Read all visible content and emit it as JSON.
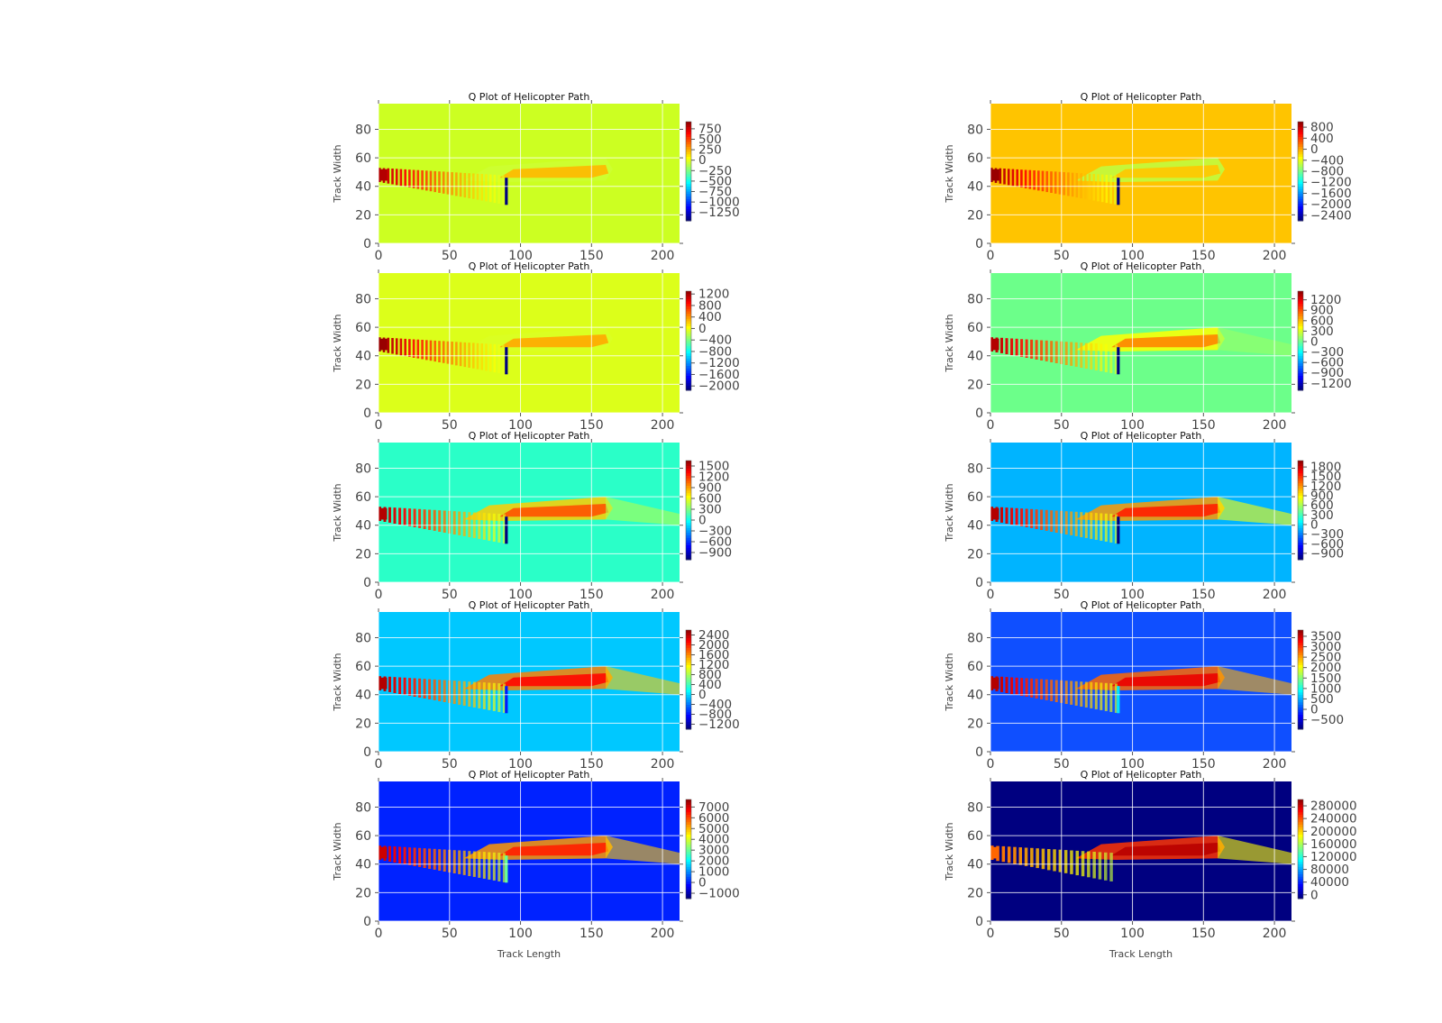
{
  "chart_data": [
    {
      "type": "heatmap",
      "title": "Q Plot of Helicopter Path",
      "xlabel": "",
      "ylabel": "Track Width",
      "xlim": [
        0,
        212
      ],
      "ylim": [
        0,
        98
      ],
      "x_ticks": [
        0,
        50,
        100,
        150,
        200
      ],
      "y_ticks": [
        0,
        20,
        40,
        60,
        80
      ],
      "grid": true,
      "colormap": "jet",
      "background_color": "#ccff22",
      "colorbar": {
        "min": -1450,
        "max": 920,
        "ticks": [
          750,
          500,
          250,
          0,
          -250,
          -500,
          -750,
          -1000,
          -1250
        ]
      },
      "features": {
        "streak_intensity": 0.9,
        "plateau_level": 0.15,
        "dip": -1.0,
        "bands": "strong",
        "tail": 0.0
      }
    },
    {
      "type": "heatmap",
      "title": "Q Plot of Helicopter Path",
      "xlabel": "",
      "ylabel": "Track Width",
      "xlim": [
        0,
        212
      ],
      "ylim": [
        0,
        98
      ],
      "x_ticks": [
        0,
        50,
        100,
        150,
        200
      ],
      "y_ticks": [
        0,
        20,
        40,
        60,
        80
      ],
      "grid": true,
      "colormap": "jet",
      "background_color": "#ffc400",
      "colorbar": {
        "min": -2600,
        "max": 1000,
        "ticks": [
          800,
          400,
          0,
          -400,
          -800,
          -1200,
          -1600,
          -2000,
          -2400
        ]
      },
      "features": {
        "streak_intensity": 0.95,
        "plateau_level": 0.12,
        "dip": -1.0,
        "bands": "strong",
        "tail": 0.0
      }
    },
    {
      "type": "heatmap",
      "title": "Q Plot of Helicopter Path",
      "xlabel": "",
      "ylabel": "Track Width",
      "xlim": [
        0,
        212
      ],
      "ylim": [
        0,
        98
      ],
      "x_ticks": [
        0,
        50,
        100,
        150,
        200
      ],
      "y_ticks": [
        0,
        20,
        40,
        60,
        80
      ],
      "grid": true,
      "colormap": "jet",
      "background_color": "#dcff1a",
      "colorbar": {
        "min": -2150,
        "max": 1300,
        "ticks": [
          1200,
          800,
          400,
          0,
          -400,
          -800,
          -1200,
          -1600,
          -2000
        ]
      },
      "features": {
        "streak_intensity": 0.95,
        "plateau_level": 0.18,
        "dip": -1.0,
        "bands": "strong",
        "tail": 0.0
      }
    },
    {
      "type": "heatmap",
      "title": "Q Plot of Helicopter Path",
      "xlabel": "",
      "ylabel": "Track Width",
      "xlim": [
        0,
        212
      ],
      "ylim": [
        0,
        98
      ],
      "x_ticks": [
        0,
        50,
        100,
        150,
        200
      ],
      "y_ticks": [
        0,
        20,
        40,
        60,
        80
      ],
      "grid": true,
      "colormap": "jet",
      "background_color": "#6cff8a",
      "colorbar": {
        "min": -1400,
        "max": 1450,
        "ticks": [
          1200,
          900,
          600,
          300,
          0,
          -300,
          -600,
          -900,
          -1200
        ]
      },
      "features": {
        "streak_intensity": 0.9,
        "plateau_level": 0.25,
        "dip": -1.0,
        "bands": "medium",
        "tail": 0.05
      }
    },
    {
      "type": "heatmap",
      "title": "Q Plot of Helicopter Path",
      "xlabel": "",
      "ylabel": "Track Width",
      "xlim": [
        0,
        212
      ],
      "ylim": [
        0,
        98
      ],
      "x_ticks": [
        0,
        50,
        100,
        150,
        200
      ],
      "y_ticks": [
        0,
        20,
        40,
        60,
        80
      ],
      "grid": true,
      "colormap": "jet",
      "background_color": "#2affc8",
      "colorbar": {
        "min": -1100,
        "max": 1650,
        "ticks": [
          1500,
          1200,
          900,
          600,
          300,
          0,
          -300,
          -600,
          -900
        ]
      },
      "features": {
        "streak_intensity": 0.9,
        "plateau_level": 0.35,
        "dip": -1.0,
        "bands": "medium",
        "tail": 0.1
      }
    },
    {
      "type": "heatmap",
      "title": "Q Plot of Helicopter Path",
      "xlabel": "",
      "ylabel": "Track Width",
      "xlim": [
        0,
        212
      ],
      "ylim": [
        0,
        98
      ],
      "x_ticks": [
        0,
        50,
        100,
        150,
        200
      ],
      "y_ticks": [
        0,
        20,
        40,
        60,
        80
      ],
      "grid": true,
      "colormap": "jet",
      "background_color": "#00b4ff",
      "colorbar": {
        "min": -1100,
        "max": 2000,
        "ticks": [
          1800,
          1500,
          1200,
          900,
          600,
          300,
          0,
          -300,
          -600,
          -900
        ]
      },
      "features": {
        "streak_intensity": 0.9,
        "plateau_level": 0.45,
        "dip": -1.0,
        "bands": "medium",
        "tail": 0.25
      }
    },
    {
      "type": "heatmap",
      "title": "Q Plot of Helicopter Path",
      "xlabel": "",
      "ylabel": "Track Width",
      "xlim": [
        0,
        212
      ],
      "ylim": [
        0,
        98
      ],
      "x_ticks": [
        0,
        50,
        100,
        150,
        200
      ],
      "y_ticks": [
        0,
        20,
        40,
        60,
        80
      ],
      "grid": true,
      "colormap": "jet",
      "background_color": "#00c8ff",
      "colorbar": {
        "min": -1400,
        "max": 2600,
        "ticks": [
          2400,
          2000,
          1600,
          1200,
          800,
          400,
          0,
          -400,
          -800,
          -1200
        ]
      },
      "features": {
        "streak_intensity": 0.9,
        "plateau_level": 0.5,
        "dip": -0.7,
        "bands": "medium",
        "tail": 0.35
      }
    },
    {
      "type": "heatmap",
      "title": "Q Plot of Helicopter Path",
      "xlabel": "",
      "ylabel": "Track Width",
      "xlim": [
        0,
        212
      ],
      "ylim": [
        0,
        98
      ],
      "x_ticks": [
        0,
        50,
        100,
        150,
        200
      ],
      "y_ticks": [
        0,
        20,
        40,
        60,
        80
      ],
      "grid": true,
      "colormap": "jet",
      "background_color": "#0f4fff",
      "colorbar": {
        "min": -950,
        "max": 3800,
        "ticks": [
          3500,
          3000,
          2500,
          2000,
          1500,
          1000,
          500,
          0,
          -500
        ]
      },
      "features": {
        "streak_intensity": 0.9,
        "plateau_level": 0.55,
        "dip": -0.3,
        "bands": "medium",
        "tail": 0.4
      }
    },
    {
      "type": "heatmap",
      "title": "Q Plot of Helicopter Path",
      "xlabel": "Track Length",
      "ylabel": "Track Width",
      "xlim": [
        0,
        212
      ],
      "ylim": [
        0,
        98
      ],
      "x_ticks": [
        0,
        50,
        100,
        150,
        200
      ],
      "y_ticks": [
        0,
        20,
        40,
        60,
        80
      ],
      "grid": true,
      "colormap": "jet",
      "background_color": "#0022ff",
      "colorbar": {
        "min": -1500,
        "max": 7700,
        "ticks": [
          7000,
          6000,
          5000,
          4000,
          3000,
          2000,
          1000,
          0,
          -1000
        ]
      },
      "features": {
        "streak_intensity": 0.85,
        "plateau_level": 0.45,
        "dip": -0.05,
        "bands": "medium",
        "tail": 0.35
      }
    },
    {
      "type": "heatmap",
      "title": "Q Plot of Helicopter Path",
      "xlabel": "Track Length",
      "ylabel": "Track Width",
      "xlim": [
        0,
        212
      ],
      "ylim": [
        0,
        98
      ],
      "x_ticks": [
        0,
        50,
        100,
        150,
        200
      ],
      "y_ticks": [
        0,
        20,
        40,
        60,
        80
      ],
      "grid": true,
      "colormap": "jet",
      "background_color": "#000080",
      "colorbar": {
        "min": -12000,
        "max": 300000,
        "ticks": [
          280000,
          240000,
          200000,
          160000,
          120000,
          80000,
          40000,
          0
        ]
      },
      "features": {
        "streak_intensity": 0.55,
        "plateau_level": 0.65,
        "dip": 0.0,
        "bands": "light",
        "tail": 0.25
      }
    }
  ]
}
